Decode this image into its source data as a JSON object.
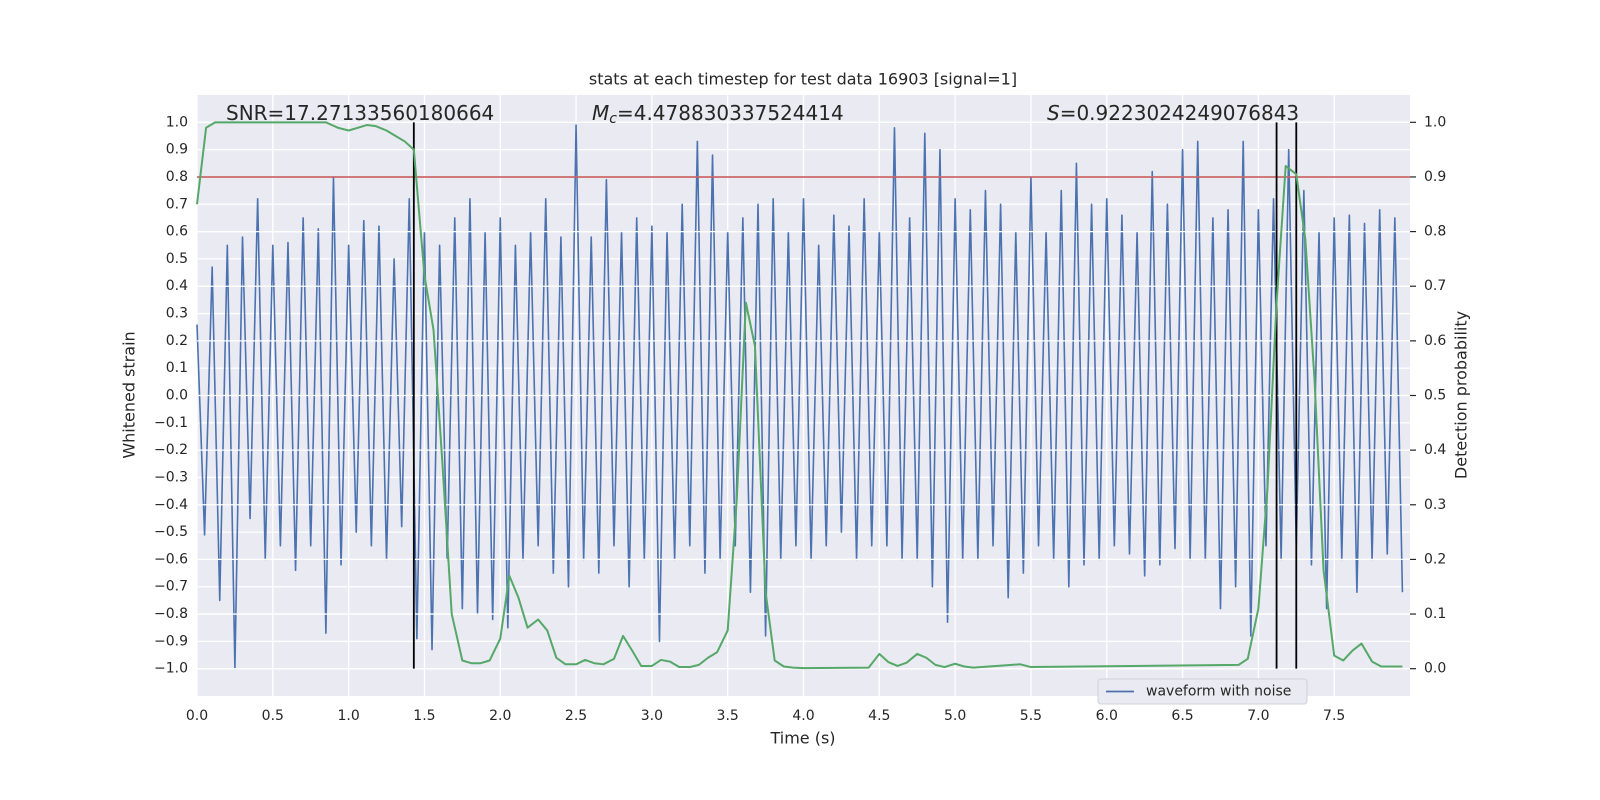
{
  "chart_data": {
    "type": "line",
    "title": "stats at each timestep for test data 16903 [signal=1]",
    "xlabel": "Time (s)",
    "ylabel": "Whitened strain",
    "y2label": "Detection probability",
    "annotations": [
      {
        "text": "SNR=17.27133560180664"
      },
      {
        "symbol": "M",
        "subscript": "c",
        "text": "=4.478830337524414"
      },
      {
        "symbol": "S",
        "text": "=0.9223024249076843"
      }
    ],
    "xlim": [
      0,
      8
    ],
    "xticks": [
      {
        "value": 0,
        "label": "0.0"
      },
      0.5,
      {
        "value": 1,
        "label": "1.0"
      },
      1.5,
      {
        "value": 2,
        "label": "2.0"
      },
      2.5,
      {
        "value": 3,
        "label": "3.0"
      },
      3.5,
      {
        "value": 4,
        "label": "4.0"
      },
      4.5,
      {
        "value": 5,
        "label": "5.0"
      },
      5.5,
      {
        "value": 6,
        "label": "6.0"
      },
      6.5,
      {
        "value": 7,
        "label": "7.0"
      },
      7.5
    ],
    "ylim": [
      -1.1,
      1.1
    ],
    "yticks": [
      {
        "value": -1,
        "label": "−1.0"
      },
      {
        "value": -0.9,
        "label": "−0.9"
      },
      {
        "value": -0.8,
        "label": "−0.8"
      },
      {
        "value": -0.7,
        "label": "−0.7"
      },
      {
        "value": -0.6,
        "label": "−0.6"
      },
      {
        "value": -0.5,
        "label": "−0.5"
      },
      {
        "value": -0.4,
        "label": "−0.4"
      },
      {
        "value": -0.3,
        "label": "−0.3"
      },
      {
        "value": -0.2,
        "label": "−0.2"
      },
      {
        "value": -0.1,
        "label": "−0.1"
      },
      {
        "value": 0,
        "label": "0.0"
      },
      0.1,
      0.2,
      0.3,
      0.4,
      0.5,
      0.6,
      0.7,
      0.8,
      0.9,
      {
        "value": 1,
        "label": "1.0"
      }
    ],
    "y2lim": [
      -0.05,
      1.05
    ],
    "y2ticks": [
      {
        "value": 0,
        "label": "0.0"
      },
      0.1,
      0.2,
      0.3,
      0.4,
      0.5,
      0.6,
      0.7,
      0.8,
      0.9,
      {
        "value": 1,
        "label": "1.0"
      }
    ],
    "grid": true,
    "legend": "lower right",
    "hlines": [
      {
        "y": 0.8,
        "color": "#c44e52"
      }
    ],
    "vlines": [
      1.43,
      7.12,
      7.25
    ],
    "vline_color": "#000000",
    "series": [
      {
        "name": "waveform with noise",
        "color": "#4c72b0",
        "x": [
          0,
          0.05,
          0.1,
          0.15,
          0.2,
          0.25,
          0.3,
          0.35,
          0.4,
          0.45,
          0.5,
          0.55,
          0.6,
          0.65,
          0.7,
          0.75,
          0.8,
          0.85,
          0.9,
          0.95,
          1,
          1.05,
          1.1,
          1.15,
          1.2,
          1.25,
          1.3,
          1.35,
          1.4,
          1.45,
          1.5,
          1.55,
          1.6,
          1.65,
          1.7,
          1.75,
          1.8,
          1.85,
          1.9,
          1.95,
          2,
          2.05,
          2.1,
          2.15,
          2.2,
          2.25,
          2.3,
          2.35,
          2.4,
          2.45,
          2.5,
          2.55,
          2.6,
          2.65,
          2.7,
          2.75,
          2.8,
          2.85,
          2.9,
          2.95,
          3,
          3.05,
          3.1,
          3.15,
          3.2,
          3.25,
          3.3,
          3.35,
          3.4,
          3.45,
          3.5,
          3.55,
          3.6,
          3.65,
          3.7,
          3.75,
          3.8,
          3.85,
          3.9,
          3.95,
          4,
          4.05,
          4.1,
          4.15,
          4.2,
          4.25,
          4.3,
          4.35,
          4.4,
          4.45,
          4.5,
          4.55,
          4.6,
          4.65,
          4.7,
          4.75,
          4.8,
          4.85,
          4.9,
          4.95,
          5,
          5.05,
          5.1,
          5.15,
          5.2,
          5.25,
          5.3,
          5.35,
          5.4,
          5.45,
          5.5,
          5.55,
          5.6,
          5.65,
          5.7,
          5.75,
          5.8,
          5.85,
          5.9,
          5.95,
          6,
          6.05,
          6.1,
          6.15,
          6.2,
          6.25,
          6.3,
          6.35,
          6.4,
          6.45,
          6.5,
          6.55,
          6.6,
          6.65,
          6.7,
          6.75,
          6.8,
          6.85,
          6.9,
          6.95,
          7,
          7.05,
          7.1,
          7.15,
          7.2,
          7.25,
          7.3,
          7.35,
          7.4,
          7.45,
          7.5,
          7.55,
          7.6,
          7.65,
          7.7,
          7.75,
          7.8,
          7.85,
          7.9,
          7.95
        ],
        "values": [
          0.26,
          -0.51,
          0.47,
          -0.75,
          0.55,
          -1.0,
          0.58,
          -0.45,
          0.72,
          -0.6,
          0.55,
          -0.55,
          0.56,
          -0.64,
          0.65,
          -0.55,
          0.61,
          -0.87,
          0.8,
          -0.62,
          0.55,
          -0.5,
          0.64,
          -0.55,
          0.62,
          -0.6,
          0.5,
          -0.48,
          0.72,
          -0.89,
          0.6,
          -0.93,
          0.55,
          -0.6,
          0.65,
          -0.78,
          0.72,
          -0.8,
          0.6,
          -0.82,
          0.65,
          -0.85,
          0.55,
          -0.6,
          0.6,
          -0.55,
          0.72,
          -0.65,
          0.58,
          -0.7,
          0.99,
          -0.6,
          0.58,
          -0.65,
          0.79,
          -0.55,
          0.6,
          -0.7,
          0.65,
          -0.6,
          0.62,
          -0.9,
          0.6,
          -0.6,
          0.7,
          -0.55,
          0.93,
          -0.65,
          0.88,
          -0.6,
          0.6,
          -0.55,
          0.65,
          -0.72,
          0.7,
          -0.88,
          0.72,
          -0.6,
          0.6,
          -0.55,
          0.72,
          -0.6,
          0.55,
          -0.55,
          0.66,
          -0.5,
          0.62,
          -0.6,
          0.72,
          -0.55,
          0.6,
          -0.55,
          0.98,
          -0.6,
          0.65,
          -0.6,
          0.96,
          -0.7,
          0.9,
          -0.83,
          0.72,
          -0.6,
          0.68,
          -0.6,
          0.75,
          -0.55,
          0.7,
          -0.74,
          0.6,
          -0.65,
          0.8,
          -0.55,
          0.6,
          -0.6,
          0.75,
          -0.7,
          0.85,
          -0.62,
          0.7,
          -0.6,
          0.72,
          -0.55,
          0.66,
          -0.58,
          0.6,
          -0.66,
          0.82,
          -0.62,
          0.7,
          -0.56,
          0.9,
          -0.6,
          0.93,
          -0.6,
          0.65,
          -0.78,
          0.68,
          -0.7,
          0.93,
          -0.88,
          0.68,
          -0.55,
          0.72,
          -0.6,
          0.9,
          -0.55,
          0.75,
          -0.62,
          0.6,
          -0.78,
          0.65,
          -0.6,
          0.66,
          -0.72,
          0.63,
          -0.6,
          0.68,
          -0.58,
          0.65,
          -0.72
        ]
      },
      {
        "color": "#55a868",
        "axis": "y2",
        "x": [
          0,
          0.06,
          0.12,
          0.5,
          0.85,
          0.93,
          1,
          1.06,
          1.12,
          1.18,
          1.25,
          1.31,
          1.37,
          1.43,
          1.5,
          1.56,
          1.62,
          1.68,
          1.75,
          1.81,
          1.87,
          1.93,
          2,
          2.06,
          2.12,
          2.18,
          2.25,
          2.31,
          2.37,
          2.43,
          2.5,
          2.56,
          2.62,
          2.68,
          2.75,
          2.81,
          2.87,
          2.93,
          3,
          3.06,
          3.12,
          3.18,
          3.25,
          3.31,
          3.37,
          3.43,
          3.5,
          3.56,
          3.62,
          3.68,
          3.75,
          3.81,
          3.87,
          3.93,
          4,
          4.43,
          4.5,
          4.56,
          4.62,
          4.68,
          4.75,
          4.81,
          4.87,
          4.93,
          5,
          5.06,
          5.12,
          5.43,
          5.5,
          6.87,
          6.93,
          7,
          7.06,
          7.12,
          7.18,
          7.25,
          7.31,
          7.37,
          7.43,
          7.5,
          7.56,
          7.62,
          7.68,
          7.75,
          7.81,
          7.95
        ],
        "values": [
          0.85,
          0.99,
          1.0,
          1.0,
          1.0,
          0.99,
          0.985,
          0.99,
          0.995,
          0.993,
          0.985,
          0.975,
          0.965,
          0.95,
          0.72,
          0.62,
          0.37,
          0.1,
          0.015,
          0.01,
          0.01,
          0.015,
          0.055,
          0.17,
          0.13,
          0.075,
          0.09,
          0.07,
          0.02,
          0.008,
          0.008,
          0.016,
          0.01,
          0.008,
          0.018,
          0.06,
          0.033,
          0.005,
          0.005,
          0.016,
          0.013,
          0.003,
          0.003,
          0.007,
          0.02,
          0.03,
          0.07,
          0.31,
          0.67,
          0.59,
          0.14,
          0.015,
          0.004,
          0.002,
          0.001,
          0.002,
          0.027,
          0.012,
          0.005,
          0.011,
          0.027,
          0.02,
          0.007,
          0.003,
          0.009,
          0.004,
          0.002,
          0.008,
          0.003,
          0.007,
          0.018,
          0.11,
          0.33,
          0.67,
          0.92,
          0.905,
          0.785,
          0.53,
          0.18,
          0.024,
          0.015,
          0.033,
          0.046,
          0.013,
          0.004,
          0.004
        ]
      }
    ]
  }
}
